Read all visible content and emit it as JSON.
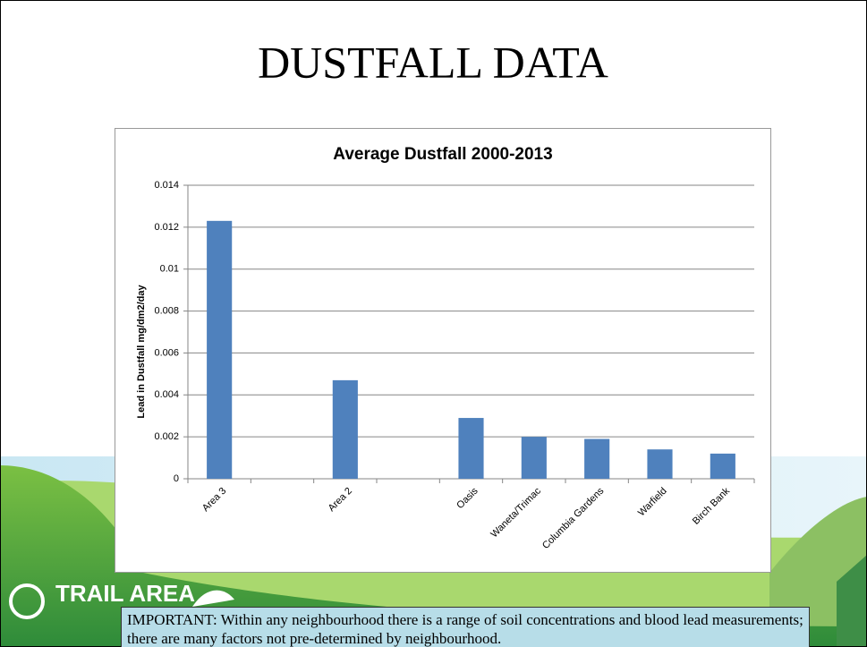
{
  "title": "DUSTFALL DATA",
  "logo": "TRAIL AREA",
  "note": "IMPORTANT:  Within any neighbourhood there is a range of soil concentrations and blood lead measurements; there are many factors not pre-determined by neighbourhood.",
  "chart_data": {
    "type": "bar",
    "title": "Average Dustfall 2000-2013",
    "y_label": "Lead in Dustfall mg/dm2/day",
    "categories": [
      "Area 3",
      null,
      "Area 2",
      null,
      "Oasis",
      "Waneta/Trimac",
      "Columbia Gardens",
      "Warfield",
      "Birch Bank"
    ],
    "values": [
      0.0123,
      null,
      0.0047,
      null,
      0.0029,
      0.002,
      0.0019,
      0.0014,
      0.0012
    ],
    "color": "#4f81bd",
    "ylim": [
      0,
      0.014
    ],
    "yticks": [
      0,
      0.002,
      0.004,
      0.006,
      0.008,
      0.01,
      0.012,
      0.014
    ],
    "grid": true
  }
}
